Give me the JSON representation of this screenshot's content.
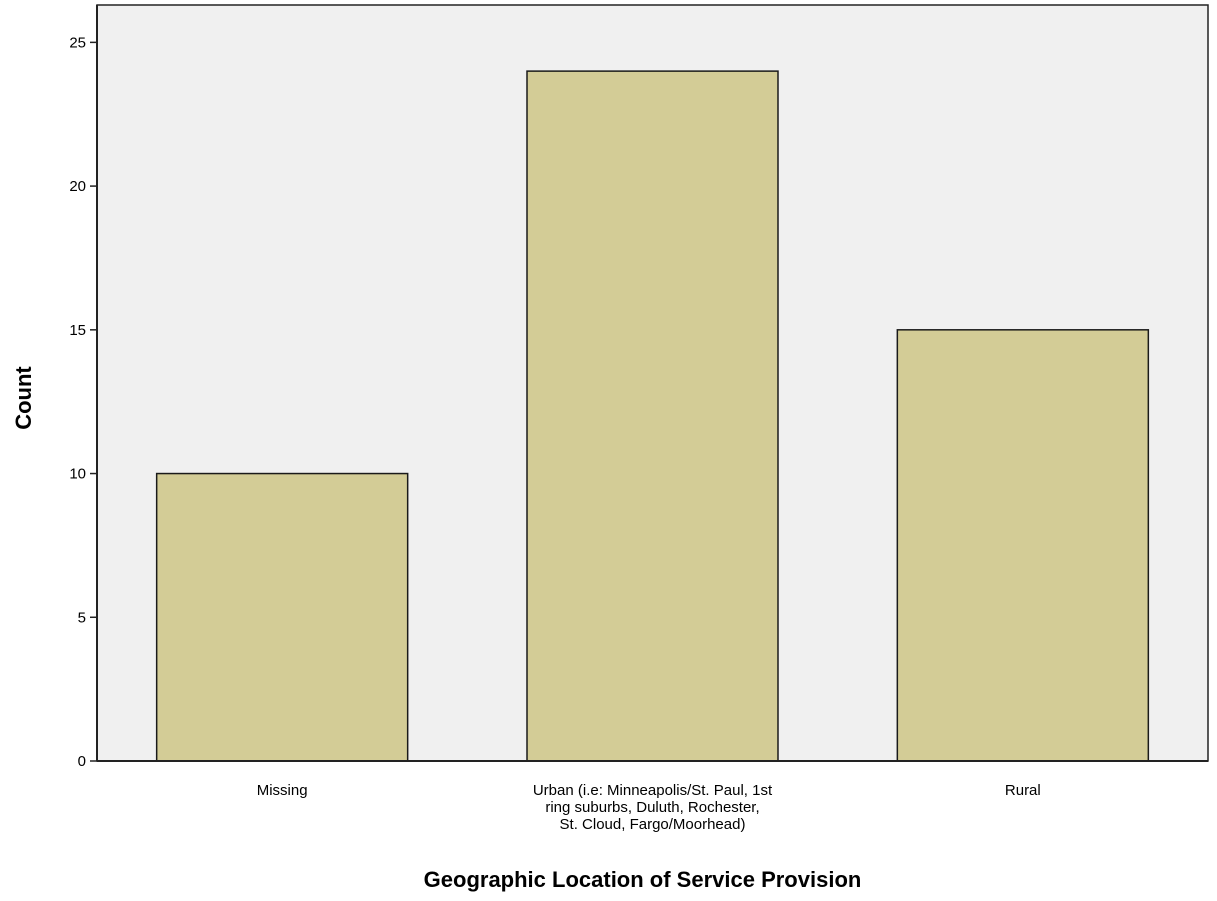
{
  "chart_data": {
    "type": "bar",
    "title": "",
    "xlabel": "Geographic Location of Service Provision",
    "ylabel": "Count",
    "ylim": [
      0,
      26.3
    ],
    "yticks": [
      0,
      5,
      10,
      15,
      20,
      25
    ],
    "grid": false,
    "categories": [
      [
        "Missing"
      ],
      [
        "Urban (i.e: Minneapolis/St. Paul, 1st",
        "ring suburbs, Duluth, Rochester,",
        "St. Cloud, Fargo/Moorhead)"
      ],
      [
        "Rural"
      ]
    ],
    "values": [
      10,
      24,
      15
    ],
    "colors": {
      "bar_fill": "#d3cc96",
      "bar_stroke": "#1a1a1a",
      "plot_background": "#f0f0f0",
      "axis": "#222222"
    }
  }
}
